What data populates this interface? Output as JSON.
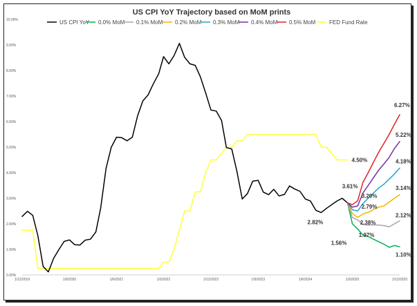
{
  "chart_data": {
    "type": "line",
    "title": "US CPI YoY Trajectory based on MoM prints",
    "xlabel": "",
    "ylabel": "",
    "ylim": [
      0,
      10
    ],
    "y_ticks": [
      "0.00%",
      "1.00%",
      "2.00%",
      "3.00%",
      "4.00%",
      "5.00%",
      "6.00%",
      "7.00%",
      "8.00%",
      "9.00%",
      "10.00%"
    ],
    "x_range": [
      "2019-12-01",
      "2025-12-01"
    ],
    "x_ticks": [
      {
        "date": "2019-12-01",
        "label": "1/12/2019"
      },
      {
        "date": "2020-09-01",
        "label": "1/9/2020"
      },
      {
        "date": "2021-06-01",
        "label": "1/6/2021"
      },
      {
        "date": "2022-03-01",
        "label": "1/3/2022"
      },
      {
        "date": "2022-12-01",
        "label": "1/12/2022"
      },
      {
        "date": "2023-09-01",
        "label": "1/9/2023"
      },
      {
        "date": "2024-06-01",
        "label": "1/6/2024"
      },
      {
        "date": "2025-03-01",
        "label": "1/3/2025"
      },
      {
        "date": "2025-12-01",
        "label": "1/12/2025"
      }
    ],
    "grid": false,
    "legend_position": "top",
    "series": [
      {
        "name": "US CPI YoY",
        "color": "#000000",
        "points": [
          [
            "2019-12-01",
            2.29
          ],
          [
            "2020-01-01",
            2.49
          ],
          [
            "2020-02-01",
            2.33
          ],
          [
            "2020-03-01",
            1.54
          ],
          [
            "2020-04-01",
            0.33
          ],
          [
            "2020-05-01",
            0.12
          ],
          [
            "2020-06-01",
            0.65
          ],
          [
            "2020-07-01",
            0.99
          ],
          [
            "2020-08-01",
            1.31
          ],
          [
            "2020-09-01",
            1.37
          ],
          [
            "2020-10-01",
            1.18
          ],
          [
            "2020-11-01",
            1.17
          ],
          [
            "2020-12-01",
            1.36
          ],
          [
            "2021-01-01",
            1.4
          ],
          [
            "2021-02-01",
            1.68
          ],
          [
            "2021-03-01",
            2.62
          ],
          [
            "2021-04-01",
            4.16
          ],
          [
            "2021-05-01",
            4.99
          ],
          [
            "2021-06-01",
            5.39
          ],
          [
            "2021-07-01",
            5.37
          ],
          [
            "2021-08-01",
            5.25
          ],
          [
            "2021-09-01",
            5.39
          ],
          [
            "2021-10-01",
            6.22
          ],
          [
            "2021-11-01",
            6.81
          ],
          [
            "2021-12-01",
            7.04
          ],
          [
            "2022-01-01",
            7.48
          ],
          [
            "2022-02-01",
            7.87
          ],
          [
            "2022-03-01",
            8.54
          ],
          [
            "2022-04-01",
            8.26
          ],
          [
            "2022-05-01",
            8.58
          ],
          [
            "2022-06-01",
            9.06
          ],
          [
            "2022-07-01",
            8.52
          ],
          [
            "2022-08-01",
            8.26
          ],
          [
            "2022-09-01",
            8.2
          ],
          [
            "2022-10-01",
            7.75
          ],
          [
            "2022-11-01",
            7.11
          ],
          [
            "2022-12-01",
            6.45
          ],
          [
            "2023-01-01",
            6.41
          ],
          [
            "2023-02-01",
            6.04
          ],
          [
            "2023-03-01",
            4.98
          ],
          [
            "2023-04-01",
            4.93
          ],
          [
            "2023-05-01",
            4.05
          ],
          [
            "2023-06-01",
            2.97
          ],
          [
            "2023-07-01",
            3.18
          ],
          [
            "2023-08-01",
            3.67
          ],
          [
            "2023-09-01",
            3.7
          ],
          [
            "2023-10-01",
            3.24
          ],
          [
            "2023-11-01",
            3.14
          ],
          [
            "2023-12-01",
            3.35
          ],
          [
            "2024-01-01",
            3.09
          ],
          [
            "2024-02-01",
            3.15
          ],
          [
            "2024-03-01",
            3.48
          ],
          [
            "2024-04-01",
            3.36
          ],
          [
            "2024-05-01",
            3.27
          ],
          [
            "2024-06-01",
            2.97
          ],
          [
            "2024-07-01",
            2.89
          ],
          [
            "2024-08-01",
            2.53
          ],
          [
            "2024-09-01",
            2.44
          ],
          [
            "2024-10-01",
            2.6
          ],
          [
            "2024-11-01",
            2.75
          ],
          [
            "2024-12-01",
            2.89
          ],
          [
            "2025-01-01",
            3.0
          ],
          [
            "2025-02-01",
            2.82
          ]
        ]
      },
      {
        "name": "0.0% MoM",
        "color": "#00b050",
        "points": [
          [
            "2025-02-01",
            2.82
          ],
          [
            "2025-03-01",
            2.0
          ],
          [
            "2025-04-01",
            1.8
          ],
          [
            "2025-05-01",
            1.56
          ],
          [
            "2025-06-01",
            1.5
          ],
          [
            "2025-07-01",
            1.4
          ],
          [
            "2025-08-01",
            1.3
          ],
          [
            "2025-09-01",
            1.2
          ],
          [
            "2025-10-01",
            1.08
          ],
          [
            "2025-11-01",
            1.15
          ],
          [
            "2025-12-01",
            1.1
          ]
        ]
      },
      {
        "name": "0.1% MoM",
        "color": "#a6a6a6",
        "points": [
          [
            "2025-02-01",
            2.82
          ],
          [
            "2025-03-01",
            2.25
          ],
          [
            "2025-04-01",
            2.15
          ],
          [
            "2025-05-01",
            1.97
          ],
          [
            "2025-06-01",
            1.95
          ],
          [
            "2025-07-01",
            1.96
          ],
          [
            "2025-08-01",
            1.95
          ],
          [
            "2025-09-01",
            1.93
          ],
          [
            "2025-10-01",
            1.88
          ],
          [
            "2025-11-01",
            2.0
          ],
          [
            "2025-12-01",
            2.12
          ]
        ]
      },
      {
        "name": "0.2% MoM",
        "color": "#f4b400",
        "points": [
          [
            "2025-02-01",
            2.82
          ],
          [
            "2025-03-01",
            2.4
          ],
          [
            "2025-04-01",
            2.25
          ],
          [
            "2025-05-01",
            2.38
          ],
          [
            "2025-06-01",
            2.45
          ],
          [
            "2025-07-01",
            2.55
          ],
          [
            "2025-08-01",
            2.65
          ],
          [
            "2025-09-01",
            2.7
          ],
          [
            "2025-10-01",
            2.85
          ],
          [
            "2025-11-01",
            3.0
          ],
          [
            "2025-12-01",
            3.14
          ]
        ]
      },
      {
        "name": "0.3% MoM",
        "color": "#1fa3d0",
        "points": [
          [
            "2025-02-01",
            2.82
          ],
          [
            "2025-03-01",
            2.55
          ],
          [
            "2025-04-01",
            2.5
          ],
          [
            "2025-05-01",
            2.79
          ],
          [
            "2025-06-01",
            3.0
          ],
          [
            "2025-07-01",
            3.2
          ],
          [
            "2025-08-01",
            3.4
          ],
          [
            "2025-09-01",
            3.55
          ],
          [
            "2025-10-01",
            3.75
          ],
          [
            "2025-11-01",
            3.95
          ],
          [
            "2025-12-01",
            4.18
          ]
        ]
      },
      {
        "name": "0.4% MoM",
        "color": "#7030a0",
        "points": [
          [
            "2025-02-01",
            2.82
          ],
          [
            "2025-03-01",
            2.65
          ],
          [
            "2025-04-01",
            2.7
          ],
          [
            "2025-05-01",
            3.2
          ],
          [
            "2025-06-01",
            3.5
          ],
          [
            "2025-07-01",
            3.8
          ],
          [
            "2025-08-01",
            4.1
          ],
          [
            "2025-09-01",
            4.35
          ],
          [
            "2025-10-01",
            4.6
          ],
          [
            "2025-11-01",
            4.95
          ],
          [
            "2025-12-01",
            5.22
          ]
        ]
      },
      {
        "name": "0.5% MoM",
        "color": "#e02020",
        "points": [
          [
            "2025-02-01",
            2.82
          ],
          [
            "2025-03-01",
            2.75
          ],
          [
            "2025-04-01",
            2.9
          ],
          [
            "2025-05-01",
            3.61
          ],
          [
            "2025-06-01",
            4.0
          ],
          [
            "2025-07-01",
            4.4
          ],
          [
            "2025-08-01",
            4.8
          ],
          [
            "2025-09-01",
            5.15
          ],
          [
            "2025-10-01",
            5.5
          ],
          [
            "2025-11-01",
            5.9
          ],
          [
            "2025-12-01",
            6.27
          ]
        ]
      },
      {
        "name": "FED Fund Rate",
        "color": "#ffff33",
        "points": [
          [
            "2019-12-01",
            1.75
          ],
          [
            "2020-02-01",
            1.75
          ],
          [
            "2020-03-01",
            0.25
          ],
          [
            "2022-02-01",
            0.25
          ],
          [
            "2022-03-01",
            0.5
          ],
          [
            "2022-04-01",
            0.5
          ],
          [
            "2022-05-01",
            1.0
          ],
          [
            "2022-06-01",
            1.75
          ],
          [
            "2022-07-01",
            2.5
          ],
          [
            "2022-08-01",
            2.5
          ],
          [
            "2022-09-01",
            3.25
          ],
          [
            "2022-10-01",
            3.25
          ],
          [
            "2022-11-01",
            4.0
          ],
          [
            "2022-12-01",
            4.5
          ],
          [
            "2023-01-01",
            4.5
          ],
          [
            "2023-02-01",
            4.75
          ],
          [
            "2023-03-01",
            5.0
          ],
          [
            "2023-04-01",
            5.0
          ],
          [
            "2023-05-01",
            5.25
          ],
          [
            "2023-06-01",
            5.25
          ],
          [
            "2023-07-01",
            5.5
          ],
          [
            "2024-08-01",
            5.5
          ],
          [
            "2024-09-01",
            5.0
          ],
          [
            "2024-10-01",
            5.0
          ],
          [
            "2024-11-01",
            4.75
          ],
          [
            "2024-12-01",
            4.5
          ],
          [
            "2025-02-01",
            4.5
          ]
        ]
      }
    ],
    "data_labels": [
      {
        "text": "6.27%",
        "date": "2025-12-01",
        "value": 6.27
      },
      {
        "text": "5.22%",
        "date": "2025-12-01",
        "value": 5.22
      },
      {
        "text": "4.18%",
        "date": "2025-12-01",
        "value": 4.18
      },
      {
        "text": "3.14%",
        "date": "2025-12-01",
        "value": 3.14
      },
      {
        "text": "2.12%",
        "date": "2025-12-01",
        "value": 2.12
      },
      {
        "text": "1.10%",
        "date": "2025-12-01",
        "value": 1.1
      },
      {
        "text": "3.61%",
        "date": "2025-05-01",
        "value": 3.61
      },
      {
        "text": "3.20%",
        "date": "2025-05-01",
        "value": 3.2
      },
      {
        "text": "2.79%",
        "date": "2025-05-01",
        "value": 2.79
      },
      {
        "text": "2.38%",
        "date": "2025-05-01",
        "value": 2.38
      },
      {
        "text": "1.97%",
        "date": "2025-05-01",
        "value": 1.97
      },
      {
        "text": "1.56%",
        "date": "2025-05-01",
        "value": 1.56
      },
      {
        "text": "2.82%",
        "date": "2025-02-01",
        "value": 2.82
      },
      {
        "text": "4.50%",
        "date": "2025-02-01",
        "value": 4.5
      }
    ]
  }
}
